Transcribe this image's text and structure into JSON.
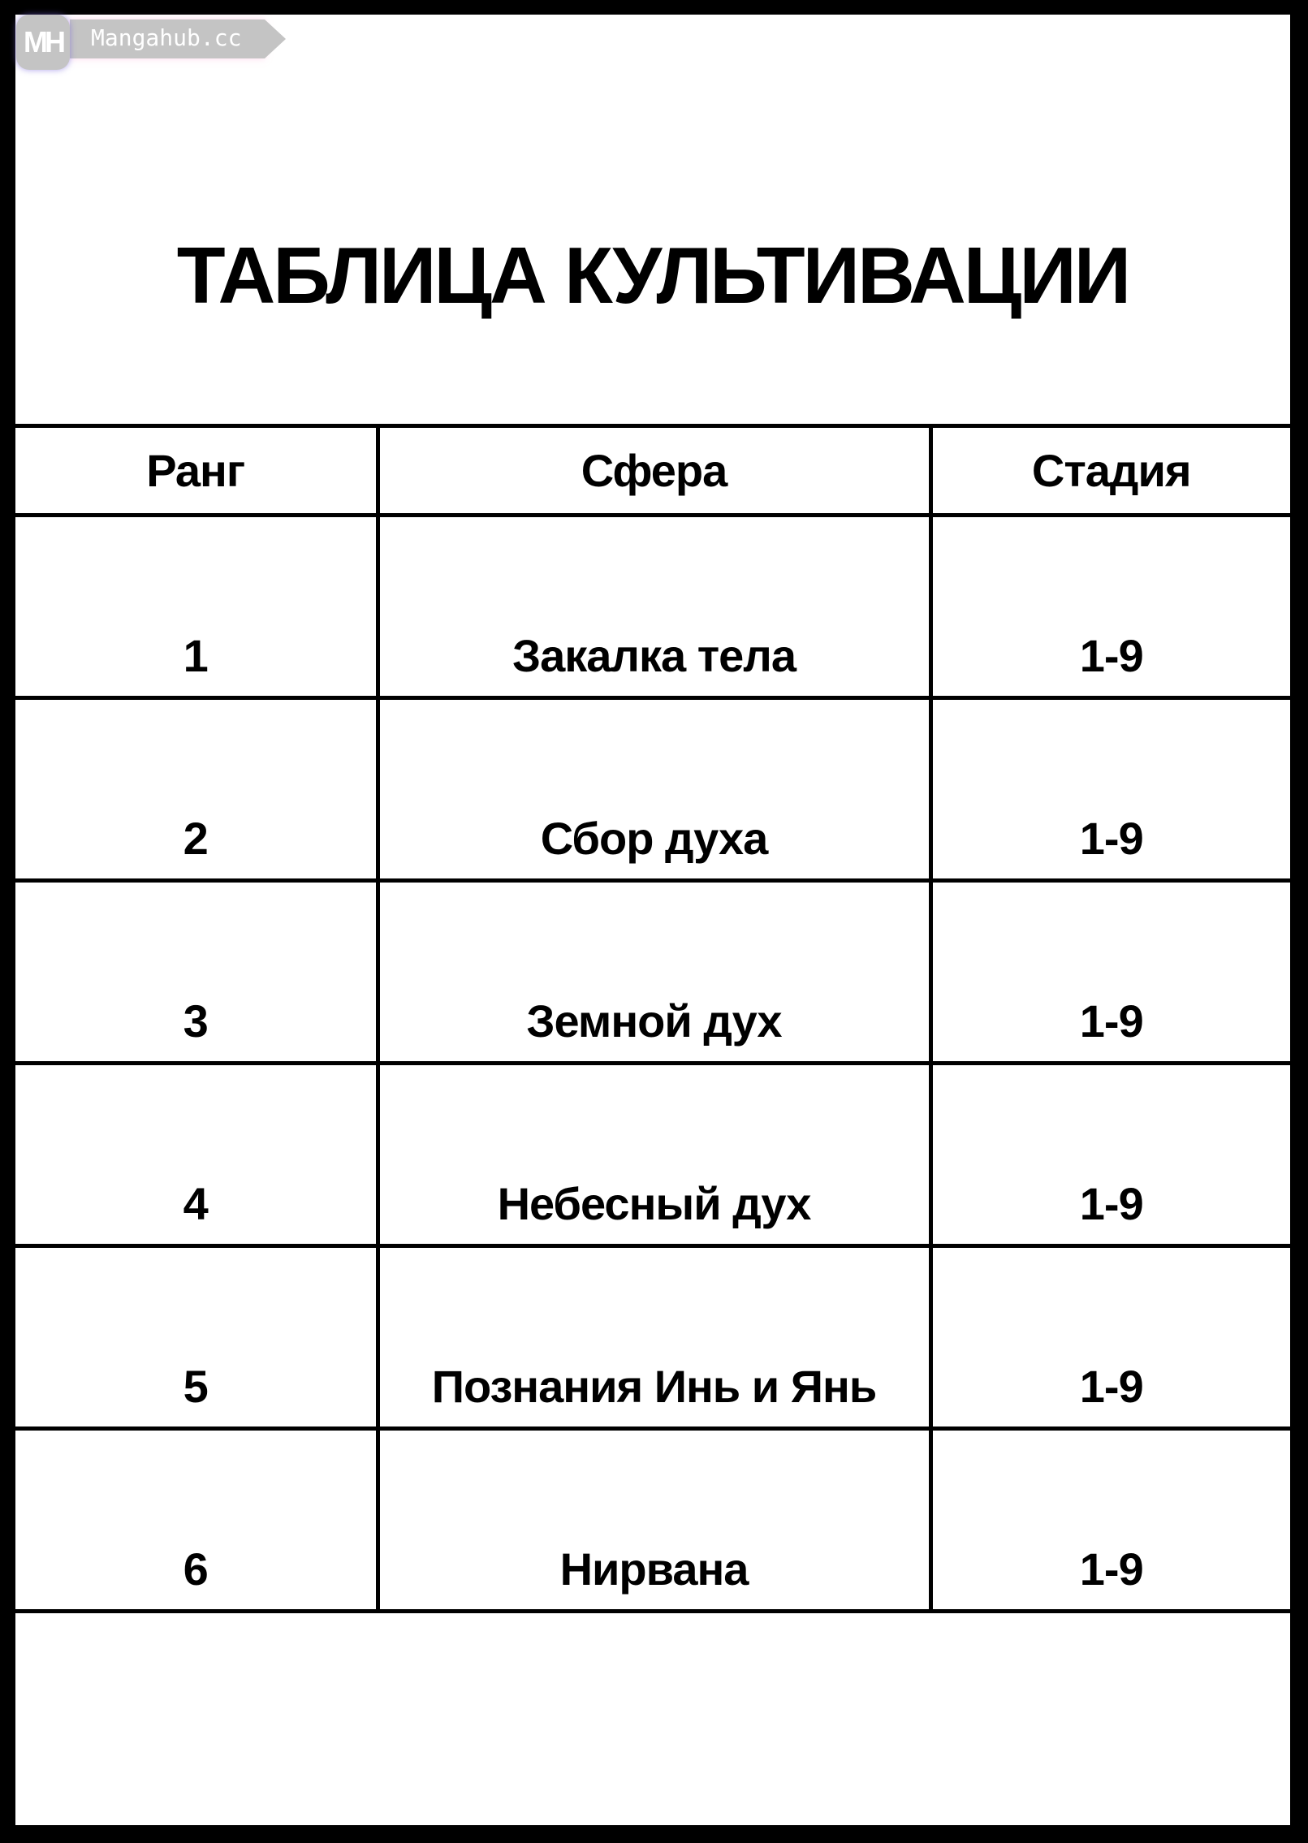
{
  "watermark": {
    "logo_text": "MH",
    "site": "Mangahub.cc"
  },
  "title": "ТАБЛИЦА КУЛЬТИВАЦИИ",
  "table": {
    "headers": [
      "Ранг",
      "Сфера",
      "Стадия"
    ],
    "rows": [
      [
        "1",
        "Закалка тела",
        "1-9"
      ],
      [
        "2",
        "Сбор духа",
        "1-9"
      ],
      [
        "3",
        "Земной дух",
        "1-9"
      ],
      [
        "4",
        "Небесный дух",
        "1-9"
      ],
      [
        "5",
        "Познания Инь и Янь",
        "1-9"
      ],
      [
        "6",
        "Нирвана",
        "1-9"
      ]
    ]
  }
}
